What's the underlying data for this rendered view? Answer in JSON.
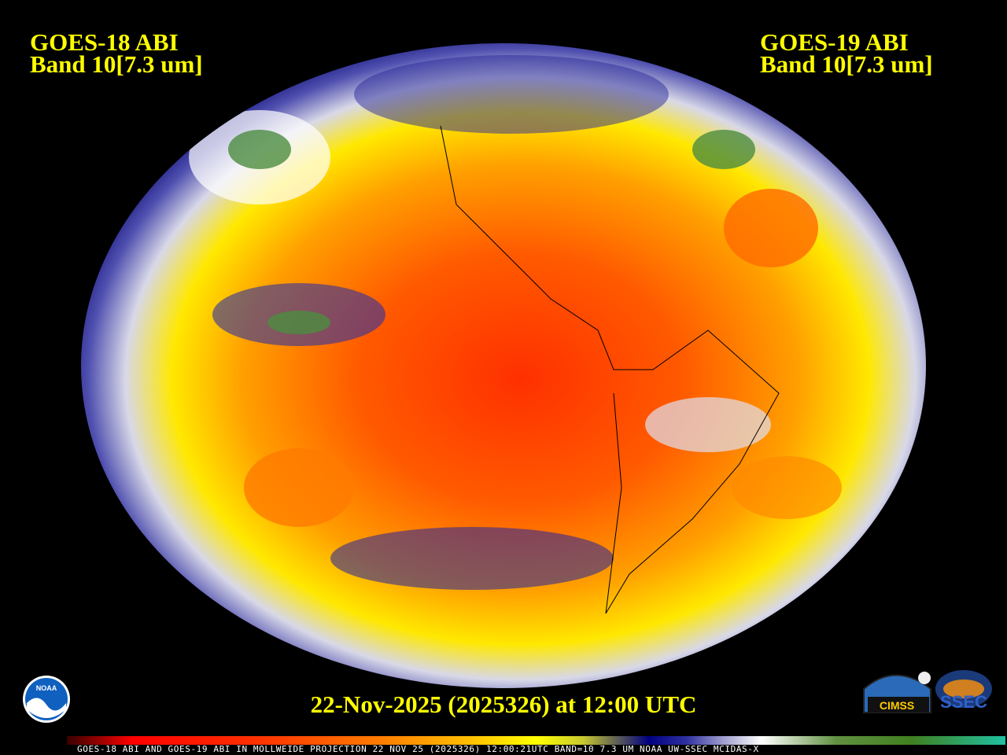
{
  "left_title": {
    "line1": "GOES-18 ABI",
    "line2": "Band 10[7.3 um]"
  },
  "right_title": {
    "line1": "GOES-19 ABI",
    "line2": "Band 10[7.3 um]"
  },
  "date_label": "22-Nov-2025 (2025326) at 12:00 UTC",
  "footer": "GOES-18 ABI AND GOES-19 ABI IN MOLLWEIDE PROJECTION 22 NOV 25 (2025326) 12:00:21UTC BAND=10 7.3 UM NOAA UW-SSEC MCIDAS-X",
  "logos": {
    "noaa": "NOAA",
    "cimss": "CIMSS",
    "ssec": "SSEC"
  },
  "map": {
    "projection": "Mollweide",
    "band": "water vapor 7.3 um",
    "colors": {
      "moist": "#ffffff",
      "mid": "#1a1a90",
      "dry": "#ffff00",
      "very_dry": "#ff2000",
      "cold_cloud": "#3c8c3c"
    }
  }
}
